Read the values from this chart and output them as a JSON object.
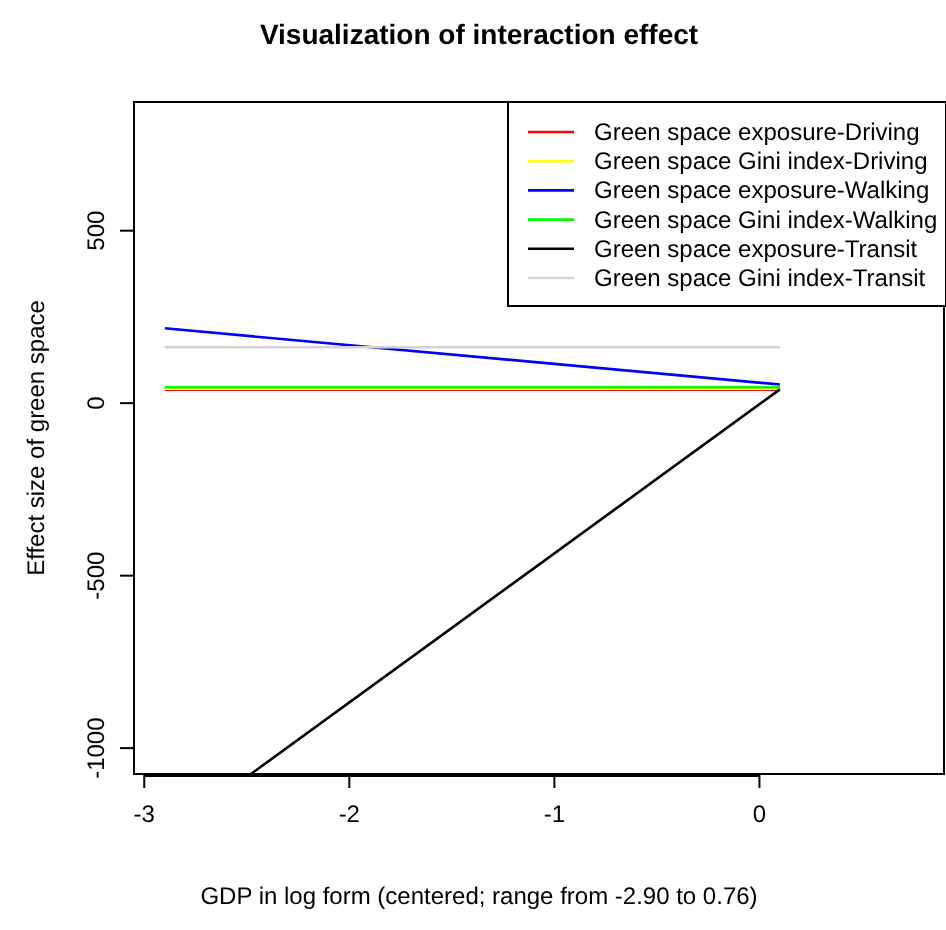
{
  "chart_data": {
    "type": "line",
    "title": "Visualization of interaction effect",
    "xlabel": "GDP in log form (centered; range from -2.90 to 0.76)",
    "ylabel": "Effect size of green space",
    "x": [
      -2.9,
      0.1
    ],
    "xlim": [
      -3.05,
      0.9
    ],
    "xticks": [
      -3,
      -2,
      -1,
      0
    ],
    "ylim": [
      -1075,
      873
    ],
    "yticks": [
      -1000,
      -500,
      0,
      500
    ],
    "series": [
      {
        "name": "Green space exposure-Driving",
        "color": "#ff0000",
        "values": [
          39,
          39
        ]
      },
      {
        "name": "Green space Gini index-Driving",
        "color": "#ffff00",
        "values": [
          42,
          42
        ]
      },
      {
        "name": "Green space exposure-Walking",
        "color": "#0000ff",
        "values": [
          217,
          54
        ]
      },
      {
        "name": "Green space Gini index-Walking",
        "color": "#00ff00",
        "values": [
          46,
          46
        ]
      },
      {
        "name": "Green space exposure-Transit",
        "color": "#000000",
        "x": [
          -2.48,
          0.1
        ],
        "values": [
          -1075,
          40
        ]
      },
      {
        "name": "Green space Gini index-Transit",
        "color": "#d3d3d3",
        "values": [
          162,
          162
        ]
      }
    ],
    "legend": "top right",
    "grid": false
  }
}
